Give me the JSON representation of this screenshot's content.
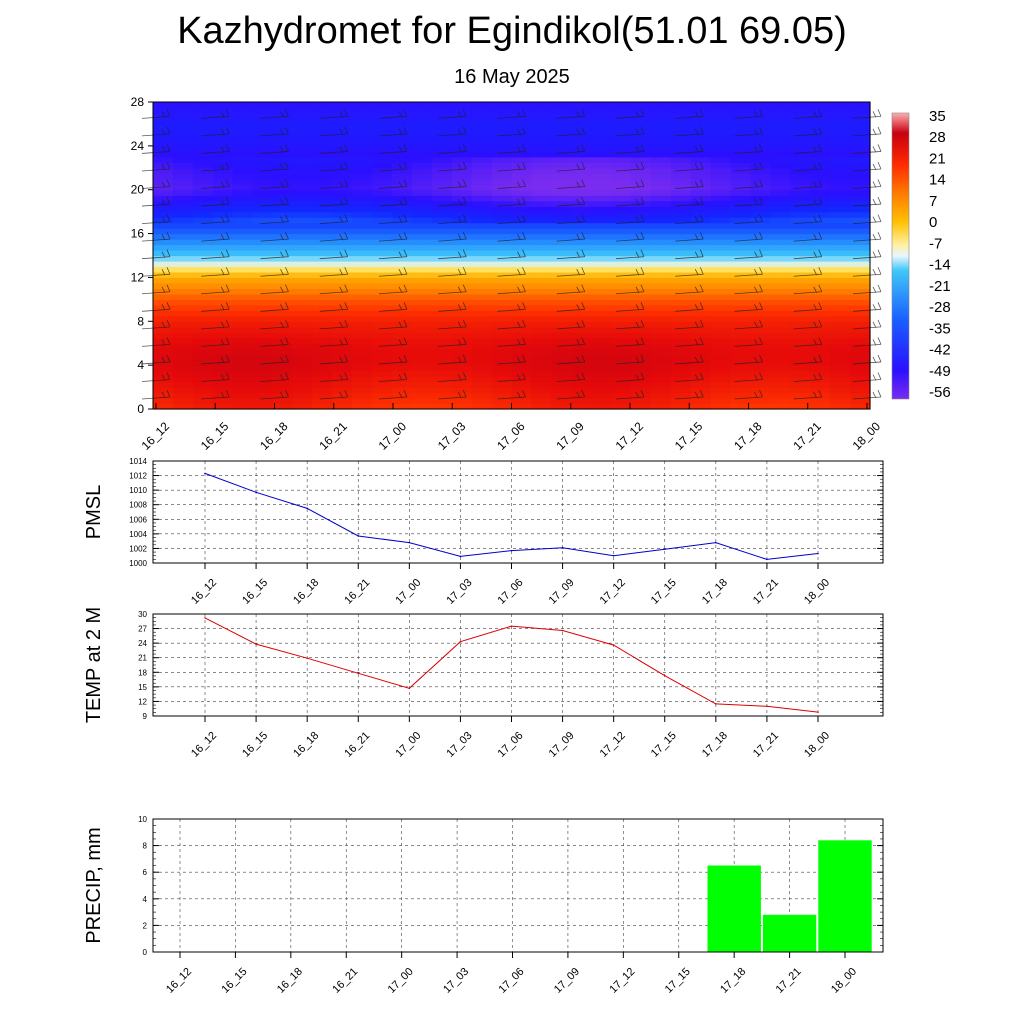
{
  "title": "Kazhydromet for Egindikol(51.01 69.05)",
  "subtitle": "16 May 2025",
  "chart_data": [
    {
      "type": "heatmap",
      "title": "",
      "x_labels": [
        "16_12",
        "16_15",
        "16_18",
        "16_21",
        "17_00",
        "17_03",
        "17_06",
        "17_09",
        "17_12",
        "17_15",
        "17_18",
        "17_21",
        "18_00"
      ],
      "y_ticks": [
        0,
        4,
        8,
        12,
        16,
        20,
        24,
        28
      ],
      "ylim": [
        0,
        28
      ],
      "colorbar": {
        "labels": [
          "35",
          "28",
          "21",
          "14",
          "7",
          "0",
          "-7",
          "-14",
          "-21",
          "-28",
          "-35",
          "-42",
          "-49",
          "-56"
        ],
        "range": [
          -60,
          38
        ]
      },
      "vertical_profile": {
        "heights": [
          0,
          2,
          4,
          5,
          6,
          8,
          10,
          12,
          13,
          14,
          16,
          18,
          20,
          22,
          24,
          26,
          28
        ],
        "values": [
          22,
          26,
          29,
          29,
          28,
          24,
          16,
          4,
          -10,
          -20,
          -35,
          -47,
          -57,
          -55,
          -50,
          -48,
          -52
        ]
      },
      "barbs": true,
      "grid": false
    },
    {
      "type": "line",
      "ylabel": "PMSL",
      "x_labels": [
        "16_12",
        "16_15",
        "16_18",
        "16_21",
        "17_00",
        "17_03",
        "17_06",
        "17_09",
        "17_12",
        "17_15",
        "17_18",
        "17_21",
        "18_00"
      ],
      "y_ticks": [
        "1000",
        "1002",
        "1004",
        "1006",
        "1008",
        "1010",
        "1012",
        "1014"
      ],
      "ylim": [
        1000,
        1014
      ],
      "values": [
        1012.3,
        1009.7,
        1007.5,
        1003.7,
        1002.8,
        1000.9,
        1001.7,
        1002.1,
        1001.0,
        1001.9,
        1002.8,
        1000.5,
        1001.3
      ],
      "color": "#0000cc",
      "grid": true
    },
    {
      "type": "line",
      "ylabel": "TEMP at 2 M",
      "x_labels": [
        "16_12",
        "16_15",
        "16_18",
        "16_21",
        "17_00",
        "17_03",
        "17_06",
        "17_09",
        "17_12",
        "17_15",
        "17_18",
        "17_21",
        "18_00"
      ],
      "y_ticks": [
        "9",
        "12",
        "15",
        "18",
        "21",
        "24",
        "27",
        "30"
      ],
      "ylim": [
        9,
        30
      ],
      "values": [
        29.2,
        23.8,
        20.9,
        17.8,
        14.7,
        24.3,
        27.5,
        26.6,
        23.6,
        17.3,
        11.5,
        11.0,
        9.8
      ],
      "color": "#dd0000",
      "grid": true
    },
    {
      "type": "bar",
      "ylabel": "PRECIP, mm",
      "categories": [
        "16_12",
        "16_15",
        "16_18",
        "16_21",
        "17_00",
        "17_03",
        "17_06",
        "17_09",
        "17_12",
        "17_15",
        "17_18",
        "17_21",
        "18_00"
      ],
      "y_ticks": [
        "0",
        "2",
        "4",
        "6",
        "8",
        "10"
      ],
      "ylim": [
        0,
        10
      ],
      "values": [
        0,
        0,
        0,
        0,
        0,
        0,
        0,
        0,
        0,
        0,
        6.5,
        2.8,
        8.4
      ],
      "color": "#00ff00",
      "grid": true
    }
  ]
}
